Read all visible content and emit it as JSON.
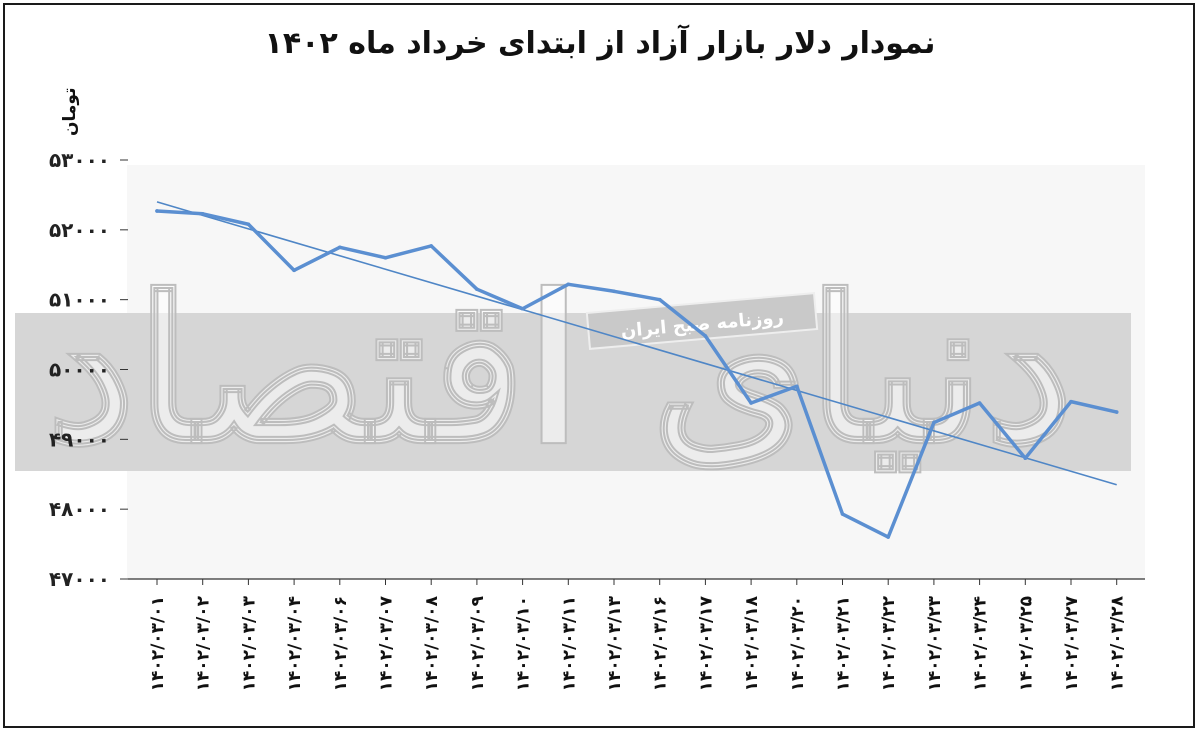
{
  "chart_data": {
    "type": "line",
    "title": "نمودار دلار بازار آزاد از ابتدای خرداد ماه ۱۴۰۲",
    "ylabel": "تومان",
    "xlabel": "",
    "ylim": [
      47000,
      53000
    ],
    "y_ticks": [
      {
        "value": 47000,
        "label": "۴۷۰۰۰"
      },
      {
        "value": 48000,
        "label": "۴۸۰۰۰"
      },
      {
        "value": 49000,
        "label": "۴۹۰۰۰"
      },
      {
        "value": 50000,
        "label": "۵۰۰۰۰"
      },
      {
        "value": 51000,
        "label": "۵۱۰۰۰"
      },
      {
        "value": 52000,
        "label": "۵۲۰۰۰"
      },
      {
        "value": 53000,
        "label": "۵۳۰۰۰"
      }
    ],
    "categories": [
      "۱۴۰۲/۰۳/۰۱",
      "۱۴۰۲/۰۳/۰۲",
      "۱۴۰۲/۰۳/۰۳",
      "۱۴۰۲/۰۳/۰۴",
      "۱۴۰۲/۰۳/۰۶",
      "۱۴۰۲/۰۳/۰۷",
      "۱۴۰۲/۰۳/۰۸",
      "۱۴۰۲/۰۳/۰۹",
      "۱۴۰۲/۰۳/۱۰",
      "۱۴۰۲/۰۳/۱۱",
      "۱۴۰۲/۰۳/۱۳",
      "۱۴۰۲/۰۳/۱۶",
      "۱۴۰۲/۰۳/۱۷",
      "۱۴۰۲/۰۳/۱۸",
      "۱۴۰۲/۰۳/۲۰",
      "۱۴۰۲/۰۳/۲۱",
      "۱۴۰۲/۰۳/۲۲",
      "۱۴۰۲/۰۳/۲۳",
      "۱۴۰۲/۰۳/۲۴",
      "۱۴۰۲/۰۳/۲۵",
      "۱۴۰۲/۰۳/۲۷",
      "۱۴۰۲/۰۳/۲۸"
    ],
    "series": [
      {
        "values": [
          52270,
          52230,
          52080,
          51420,
          51750,
          51600,
          51770,
          51150,
          50870,
          51220,
          51120,
          51000,
          50480,
          49520,
          49760,
          47930,
          47600,
          49240,
          49520,
          48730,
          49540,
          49390
        ]
      }
    ],
    "trendline": {
      "values": [
        52400,
        48350
      ]
    },
    "grid": false,
    "legend": "none",
    "colors": {
      "line": "#5b8fd1",
      "trend": "#4f86c6",
      "axis": "#333333"
    }
  },
  "watermark": {
    "brand": "دنیای اقتصاد",
    "subtitle": "روزنامه صبح ایران"
  }
}
